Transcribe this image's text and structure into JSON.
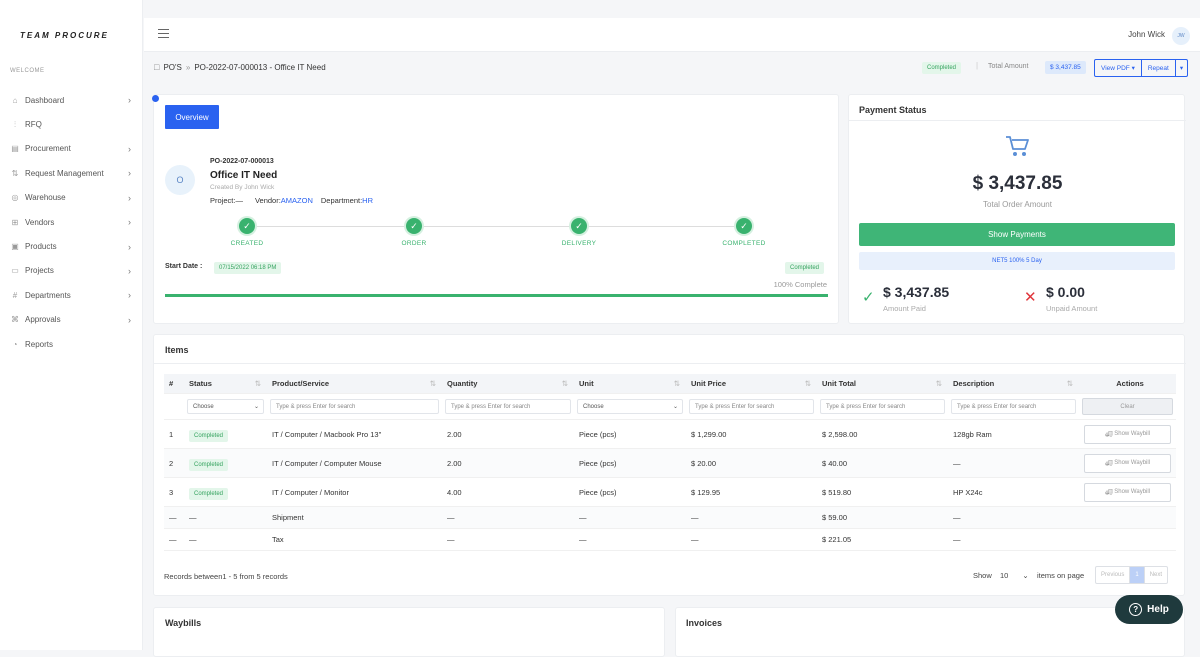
{
  "app": {
    "logo": "TEAM PROCURE",
    "welcome": "WELCOME",
    "user": "John Wick",
    "avatar": "JW"
  },
  "menu": [
    {
      "label": "Dashboard",
      "icon": "home-icon",
      "chev": true
    },
    {
      "label": "RFQ",
      "icon": "chart-icon",
      "chev": false
    },
    {
      "label": "Procurement",
      "icon": "clipboard-icon",
      "chev": true
    },
    {
      "label": "Request Management",
      "icon": "flow-icon",
      "chev": true
    },
    {
      "label": "Warehouse",
      "icon": "globe-icon",
      "chev": true
    },
    {
      "label": "Vendors",
      "icon": "store-icon",
      "chev": true
    },
    {
      "label": "Products",
      "icon": "box-icon",
      "chev": true
    },
    {
      "label": "Projects",
      "icon": "folder-icon",
      "chev": true
    },
    {
      "label": "Departments",
      "icon": "hash-icon",
      "chev": true
    },
    {
      "label": "Approvals",
      "icon": "share-icon",
      "chev": true
    },
    {
      "label": "Reports",
      "icon": "pie-icon",
      "chev": false
    }
  ],
  "breadcrumb": {
    "root": "PO'S",
    "sep": "»",
    "current": "PO-2022-07-000013 - Office IT Need"
  },
  "header": {
    "status": "Completed",
    "total_label": "Total Amount",
    "total_value": "$ 3,437.85",
    "view_pdf": "View PDF",
    "repeat": "Repeat"
  },
  "overview": {
    "tab": "Overview",
    "avatar": "O",
    "po_number": "PO-2022-07-000013",
    "title": "Office IT Need",
    "created_by": "Created By John Wick",
    "project_label": "Project:",
    "project_value": "—",
    "vendor_label": "Vendor:",
    "vendor_value": "AMAZON",
    "dept_label": "Department:",
    "dept_value": "HR",
    "steps": [
      "CREATED",
      "ORDER",
      "DELIVERY",
      "COMPLETED"
    ],
    "start_label": "Start Date :",
    "start_value": "07/15/2022 06:18 PM",
    "status": "Completed",
    "progress_text": "100% Complete",
    "progress": 1.0
  },
  "payment": {
    "title": "Payment Status",
    "total": "$ 3,437.85",
    "total_label": "Total Order Amount",
    "show_payments": "Show Payments",
    "terms": "NET5 100% 5 Day",
    "paid": "$ 3,437.85",
    "paid_label": "Amount Paid",
    "unpaid": "$ 0.00",
    "unpaid_label": "Unpaid Amount"
  },
  "items": {
    "title": "Items",
    "columns": [
      "#",
      "Status",
      "Product/Service",
      "Quantity",
      "Unit",
      "Unit Price",
      "Unit Total",
      "Description",
      "Actions"
    ],
    "filters": {
      "choose": "Choose",
      "search": "Type & press Enter for search",
      "clear": "Clear"
    },
    "rows": [
      {
        "n": "1",
        "status": "Completed",
        "product": "IT / Computer / Macbook Pro 13\"",
        "qty": "2.00",
        "unit": "Piece (pcs)",
        "price": "$ 1,299.00",
        "total": "$ 2,598.00",
        "desc": "128gb Ram",
        "action": "Show Waybill"
      },
      {
        "n": "2",
        "status": "Completed",
        "product": "IT / Computer / Computer Mouse",
        "qty": "2.00",
        "unit": "Piece (pcs)",
        "price": "$ 20.00",
        "total": "$ 40.00",
        "desc": "—",
        "action": "Show Waybill"
      },
      {
        "n": "3",
        "status": "Completed",
        "product": "IT / Computer / Monitor",
        "qty": "4.00",
        "unit": "Piece (pcs)",
        "price": "$ 129.95",
        "total": "$ 519.80",
        "desc": "HP X24c",
        "action": "Show Waybill"
      },
      {
        "n": "—",
        "status": "—",
        "product": "Shipment",
        "qty": "—",
        "unit": "—",
        "price": "—",
        "total": "$ 59.00",
        "desc": "—",
        "action": ""
      },
      {
        "n": "—",
        "status": "—",
        "product": "Tax",
        "qty": "—",
        "unit": "—",
        "price": "—",
        "total": "$ 221.05",
        "desc": "—",
        "action": ""
      }
    ],
    "records": "Records between1 - 5 from 5 records",
    "show": "Show",
    "page_size": "10",
    "items_on_page": "items on page",
    "prev": "Previous",
    "page": "1",
    "next": "Next"
  },
  "waybills": "Waybills",
  "invoices": "Invoices",
  "help": "Help",
  "colors": {
    "primary": "#2a62f0",
    "success": "#39b26e",
    "danger": "#e0353b"
  }
}
